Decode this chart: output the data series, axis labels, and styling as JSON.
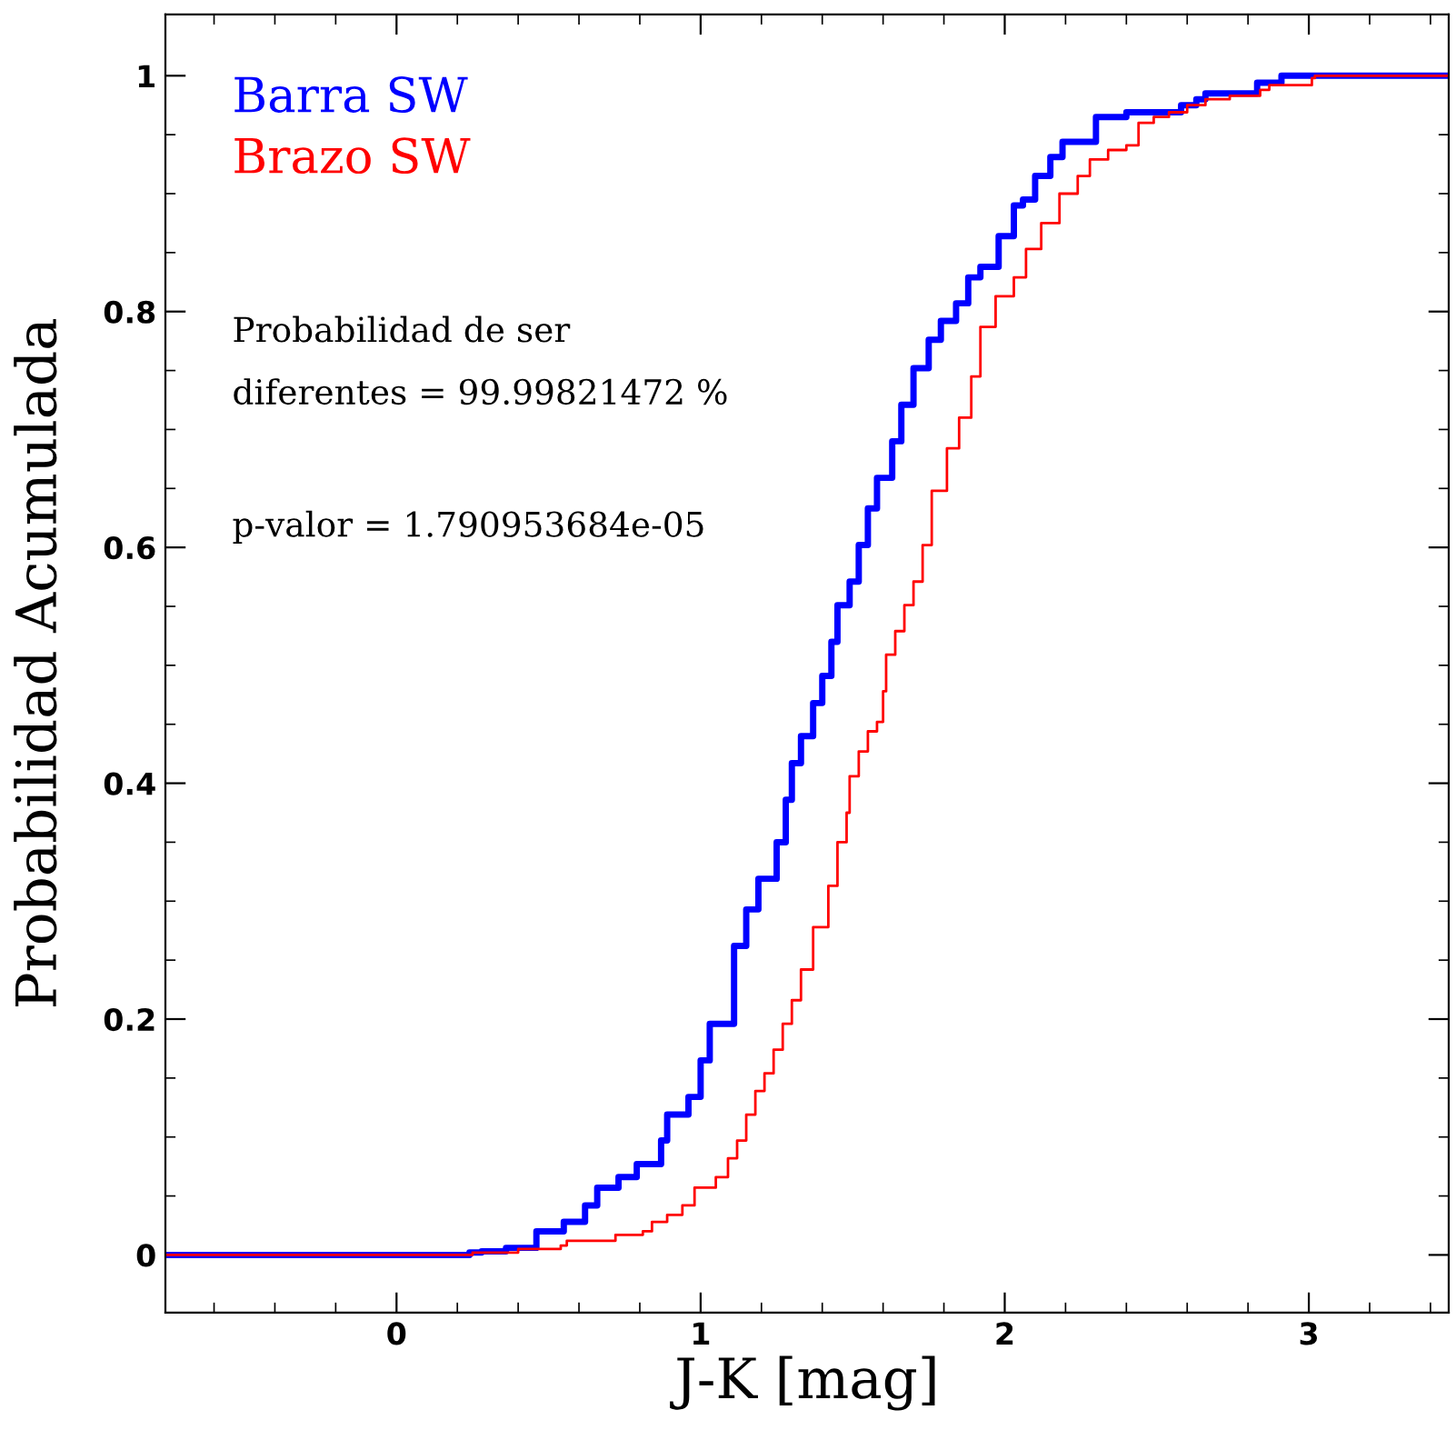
{
  "chart_data": {
    "type": "step",
    "xlabel": "J-K [mag]",
    "ylabel": "Probabilidad Acumulada",
    "annotations": [
      "Probabilidad de ser",
      "diferentes = 99.99821472 %",
      "p-valor = 1.790953684e-05"
    ],
    "legend": "top left",
    "grid": false,
    "xlim": [
      -0.76,
      3.46
    ],
    "ylim": [
      -0.049,
      1.052
    ],
    "xticks": [
      {
        "value": -0.6,
        "label": null
      },
      {
        "value": -0.4,
        "label": null
      },
      {
        "value": -0.2,
        "label": null
      },
      0,
      {
        "value": 0.2,
        "label": null
      },
      {
        "value": 0.4,
        "label": null
      },
      {
        "value": 0.6,
        "label": null
      },
      {
        "value": 0.8,
        "label": null
      },
      1,
      {
        "value": 1.2,
        "label": null
      },
      {
        "value": 1.4,
        "label": null
      },
      {
        "value": 1.6,
        "label": null
      },
      {
        "value": 1.8,
        "label": null
      },
      2,
      {
        "value": 2.2,
        "label": null
      },
      {
        "value": 2.4,
        "label": null
      },
      {
        "value": 2.6,
        "label": null
      },
      {
        "value": 2.8,
        "label": null
      },
      3,
      {
        "value": 3.2,
        "label": null
      },
      {
        "value": 3.4,
        "label": null
      }
    ],
    "yticks": [
      0,
      {
        "value": 0.05,
        "label": null
      },
      {
        "value": 0.1,
        "label": null
      },
      {
        "value": 0.15,
        "label": null
      },
      0.2,
      {
        "value": 0.25,
        "label": null
      },
      {
        "value": 0.3,
        "label": null
      },
      {
        "value": 0.35,
        "label": null
      },
      0.4,
      {
        "value": 0.45,
        "label": null
      },
      {
        "value": 0.5,
        "label": null
      },
      {
        "value": 0.55,
        "label": null
      },
      0.6,
      {
        "value": 0.65,
        "label": null
      },
      {
        "value": 0.7,
        "label": null
      },
      {
        "value": 0.75,
        "label": null
      },
      0.8,
      {
        "value": 0.85,
        "label": null
      },
      {
        "value": 0.9,
        "label": null
      },
      {
        "value": 0.95,
        "label": null
      },
      1
    ],
    "series": [
      {
        "name": "Barra SW",
        "color": "#0000ff",
        "x": [
          -0.76,
          0.24,
          0.28,
          0.36,
          0.46,
          0.55,
          0.62,
          0.66,
          0.73,
          0.79,
          0.87,
          0.89,
          0.96,
          1.0,
          1.03,
          1.11,
          1.15,
          1.19,
          1.25,
          1.28,
          1.3,
          1.33,
          1.37,
          1.4,
          1.43,
          1.45,
          1.49,
          1.52,
          1.55,
          1.58,
          1.63,
          1.66,
          1.7,
          1.75,
          1.79,
          1.84,
          1.88,
          1.92,
          1.98,
          2.03,
          2.06,
          2.1,
          2.15,
          2.19,
          2.3,
          2.4,
          2.58,
          2.63,
          2.66,
          2.83,
          2.91,
          3.46
        ],
        "values": [
          0,
          0.002,
          0.003,
          0.006,
          0.02,
          0.028,
          0.042,
          0.057,
          0.066,
          0.077,
          0.097,
          0.119,
          0.134,
          0.165,
          0.196,
          0.262,
          0.293,
          0.319,
          0.35,
          0.386,
          0.417,
          0.44,
          0.468,
          0.491,
          0.52,
          0.551,
          0.571,
          0.602,
          0.633,
          0.659,
          0.69,
          0.721,
          0.752,
          0.776,
          0.792,
          0.807,
          0.829,
          0.838,
          0.864,
          0.89,
          0.895,
          0.915,
          0.931,
          0.944,
          0.965,
          0.969,
          0.975,
          0.98,
          0.985,
          0.994,
          1.0,
          1.0
        ]
      },
      {
        "name": "Brazo SW",
        "color": "#ff0000",
        "x": [
          -0.76,
          0.25,
          0.4,
          0.54,
          0.56,
          0.72,
          0.81,
          0.84,
          0.89,
          0.94,
          0.98,
          1.05,
          1.09,
          1.12,
          1.15,
          1.18,
          1.21,
          1.24,
          1.27,
          1.3,
          1.33,
          1.37,
          1.42,
          1.45,
          1.48,
          1.49,
          1.52,
          1.55,
          1.58,
          1.6,
          1.61,
          1.64,
          1.67,
          1.7,
          1.73,
          1.76,
          1.81,
          1.85,
          1.89,
          1.92,
          1.97,
          2.03,
          2.07,
          2.12,
          2.18,
          2.24,
          2.28,
          2.34,
          2.4,
          2.44,
          2.49,
          2.54,
          2.6,
          2.66,
          2.74,
          2.84,
          2.87,
          3.01,
          3.02,
          3.46
        ],
        "values": [
          0,
          0.002,
          0.005,
          0.008,
          0.012,
          0.017,
          0.02,
          0.028,
          0.034,
          0.042,
          0.057,
          0.066,
          0.082,
          0.097,
          0.119,
          0.139,
          0.154,
          0.174,
          0.196,
          0.216,
          0.242,
          0.278,
          0.313,
          0.35,
          0.375,
          0.406,
          0.427,
          0.444,
          0.452,
          0.478,
          0.509,
          0.529,
          0.551,
          0.571,
          0.602,
          0.648,
          0.684,
          0.71,
          0.745,
          0.787,
          0.813,
          0.829,
          0.853,
          0.875,
          0.9,
          0.915,
          0.929,
          0.937,
          0.941,
          0.96,
          0.965,
          0.969,
          0.975,
          0.98,
          0.983,
          0.988,
          0.992,
          0.998,
          1.0,
          1.0
        ]
      }
    ]
  }
}
